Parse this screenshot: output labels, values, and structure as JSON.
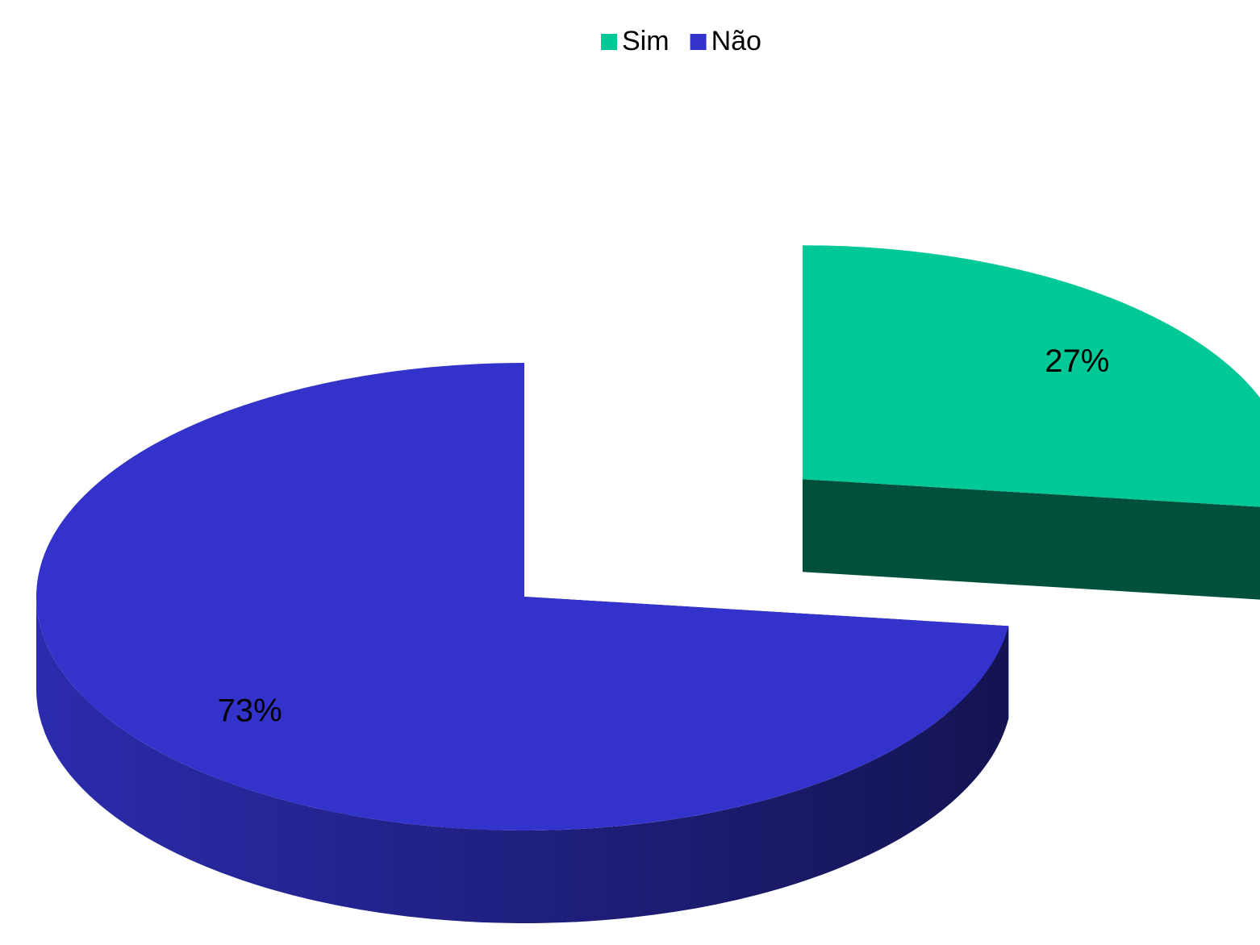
{
  "chart_data": {
    "type": "pie",
    "categories": [
      "Sim",
      "Não"
    ],
    "values": [
      27,
      73
    ],
    "value_labels": [
      "27%",
      "73%"
    ],
    "colors": [
      "#00c896",
      "#3333cc"
    ],
    "legend": "top",
    "explode": [
      "Sim"
    ]
  }
}
